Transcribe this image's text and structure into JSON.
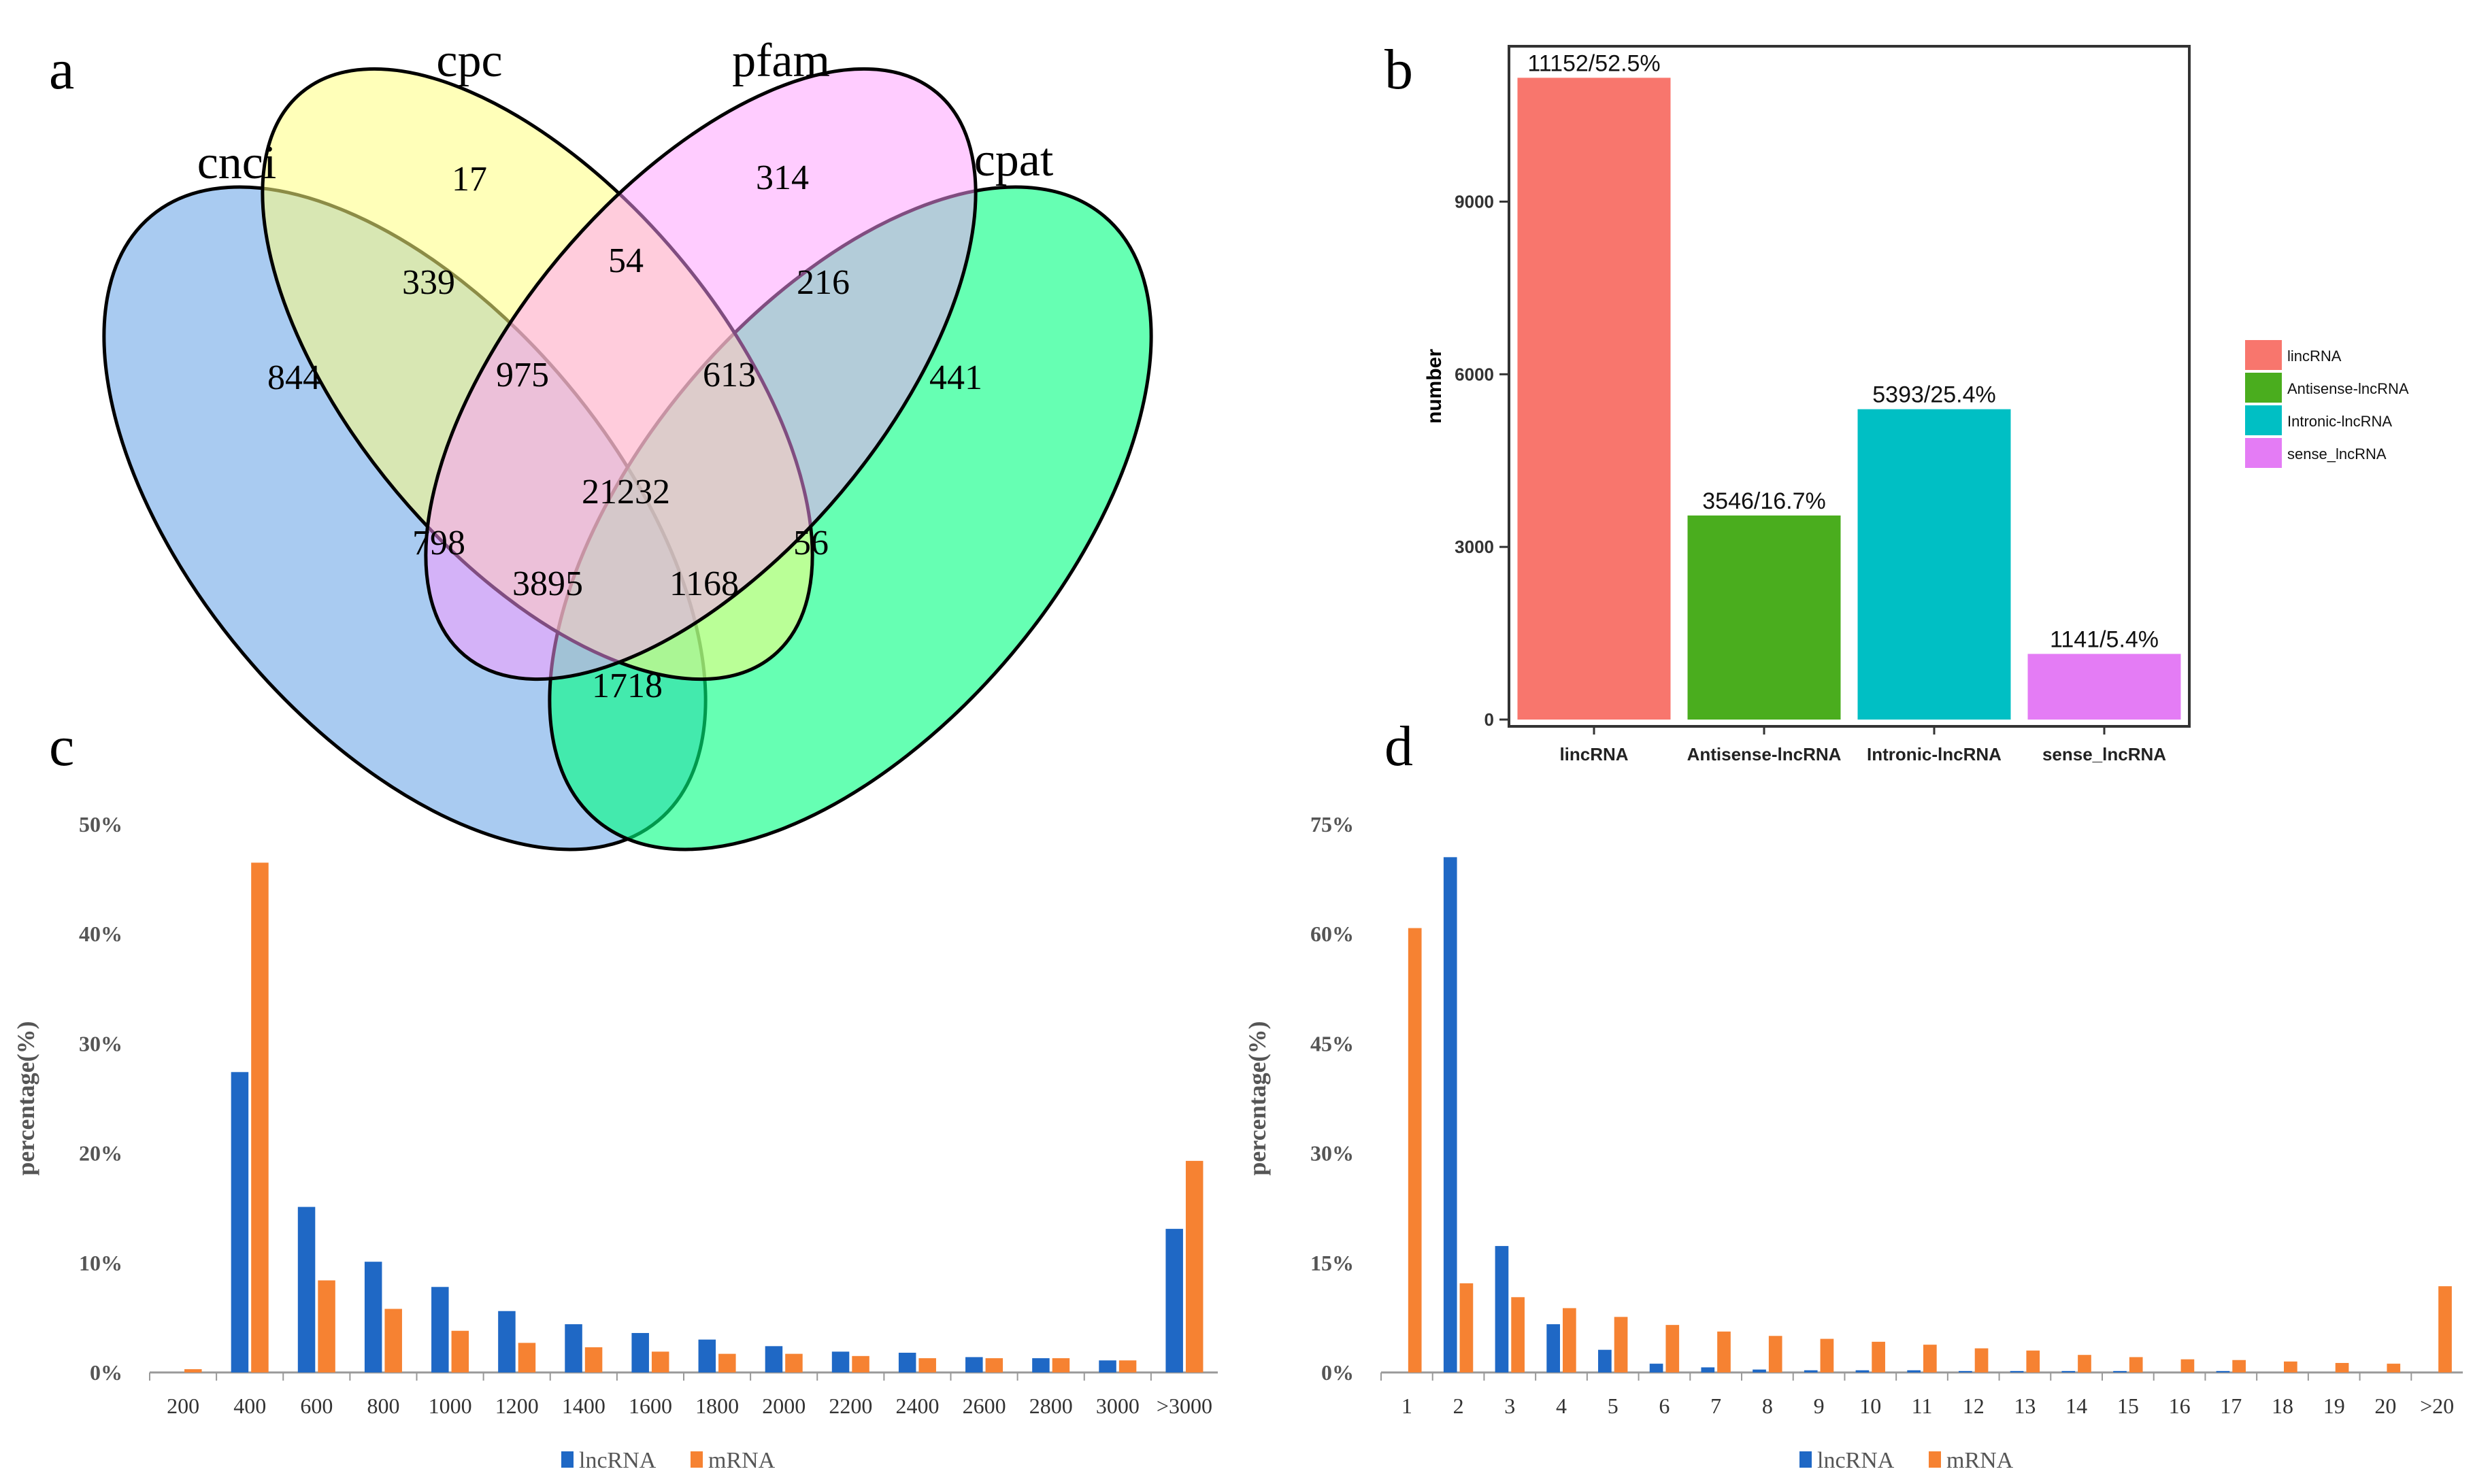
{
  "panels": {
    "a": "a",
    "b": "b",
    "c": "c",
    "d": "d"
  },
  "chart_data": [
    {
      "type": "venn",
      "panel": "a",
      "sets": [
        {
          "name": "cnci",
          "color": "#a4c8f0"
        },
        {
          "name": "cpc",
          "color": "#ffff80"
        },
        {
          "name": "pfam",
          "color": "#ff99ff"
        },
        {
          "name": "cpat",
          "color": "#00ff80"
        }
      ],
      "regions": [
        {
          "sets": [
            "cpc"
          ],
          "value": "17"
        },
        {
          "sets": [
            "pfam"
          ],
          "value": "314"
        },
        {
          "sets": [
            "cnci"
          ],
          "value": "844"
        },
        {
          "sets": [
            "cpat"
          ],
          "value": "441"
        },
        {
          "sets": [
            "cnci",
            "cpc"
          ],
          "value": "339"
        },
        {
          "sets": [
            "cpc",
            "pfam"
          ],
          "value": "54"
        },
        {
          "sets": [
            "pfam",
            "cpat"
          ],
          "value": "216"
        },
        {
          "sets": [
            "cnci",
            "cpc",
            "pfam"
          ],
          "value": "975"
        },
        {
          "sets": [
            "cpc",
            "pfam",
            "cpat"
          ],
          "value": "613"
        },
        {
          "sets": [
            "cnci",
            "cpc",
            "pfam",
            "cpat"
          ],
          "value": "21232"
        },
        {
          "sets": [
            "cnci",
            "pfam"
          ],
          "value": "798"
        },
        {
          "sets": [
            "cpc",
            "cpat"
          ],
          "value": "56"
        },
        {
          "sets": [
            "cnci",
            "pfam",
            "cpat"
          ],
          "value": "3895"
        },
        {
          "sets": [
            "cnci",
            "cpc",
            "cpat"
          ],
          "value": "1168"
        },
        {
          "sets": [
            "cnci",
            "cpat"
          ],
          "value": "1718"
        }
      ]
    },
    {
      "type": "bar",
      "panel": "b",
      "categories": [
        "lincRNA",
        "Antisense-lncRNA",
        "Intronic-lncRNA",
        "sense_lncRNA"
      ],
      "values": [
        11152,
        3546,
        5393,
        1141
      ],
      "data_labels": [
        "11152/52.5%",
        "3546/16.7%",
        "5393/25.4%",
        "1141/5.4%"
      ],
      "colors": [
        "#f8766d",
        "#4aad1e",
        "#00bfc4",
        "#e47cf5"
      ],
      "ylabel": "number",
      "yticks": [
        0,
        3000,
        6000,
        9000
      ],
      "ylim": [
        0,
        11700
      ],
      "legend": [
        "lincRNA",
        "Antisense-lncRNA",
        "Intronic-lncRNA",
        "sense_lncRNA"
      ],
      "legend_position": "right"
    },
    {
      "type": "bar",
      "panel": "c",
      "categories": [
        "200",
        "400",
        "600",
        "800",
        "1000",
        "1200",
        "1400",
        "1600",
        "1800",
        "2000",
        "2200",
        "2400",
        "2600",
        "2800",
        "3000",
        ">3000"
      ],
      "series": [
        {
          "name": "lncRNA",
          "color": "#1f68c5",
          "values": [
            0,
            27.4,
            15.1,
            10.1,
            7.8,
            5.6,
            4.4,
            3.6,
            3.0,
            2.4,
            1.9,
            1.8,
            1.4,
            1.3,
            1.1,
            13.1
          ]
        },
        {
          "name": "mRNA",
          "color": "#f68232",
          "values": [
            0.3,
            46.5,
            8.4,
            5.8,
            3.8,
            2.7,
            2.3,
            1.9,
            1.7,
            1.7,
            1.5,
            1.3,
            1.3,
            1.3,
            1.1,
            19.3
          ]
        }
      ],
      "ylabel": "percentage(%)",
      "yticks": [
        "0%",
        "10%",
        "20%",
        "30%",
        "40%",
        "50%"
      ],
      "ylim": [
        0,
        50
      ],
      "legend_position": "bottom"
    },
    {
      "type": "bar",
      "panel": "d",
      "categories": [
        "1",
        "2",
        "3",
        "4",
        "5",
        "6",
        "7",
        "8",
        "9",
        "10",
        "11",
        "12",
        "13",
        "14",
        "15",
        "16",
        "17",
        "18",
        "19",
        "20",
        ">20"
      ],
      "series": [
        {
          "name": "lncRNA",
          "color": "#1f68c5",
          "values": [
            0,
            70.5,
            17.3,
            6.6,
            3.1,
            1.2,
            0.7,
            0.4,
            0.3,
            0.3,
            0.3,
            0.2,
            0.2,
            0.2,
            0.2,
            0,
            0.2,
            0,
            0,
            0,
            0
          ]
        },
        {
          "name": "mRNA",
          "color": "#f68232",
          "values": [
            60.8,
            12.2,
            10.3,
            8.8,
            7.6,
            6.5,
            5.6,
            5.0,
            4.6,
            4.2,
            3.8,
            3.3,
            3.0,
            2.4,
            2.1,
            1.8,
            1.7,
            1.5,
            1.3,
            1.2,
            11.8
          ]
        }
      ],
      "ylabel": "percentage(%)",
      "yticks": [
        "0%",
        "15%",
        "30%",
        "45%",
        "60%",
        "75%"
      ],
      "ylim": [
        0,
        75
      ],
      "legend_position": "bottom"
    }
  ]
}
